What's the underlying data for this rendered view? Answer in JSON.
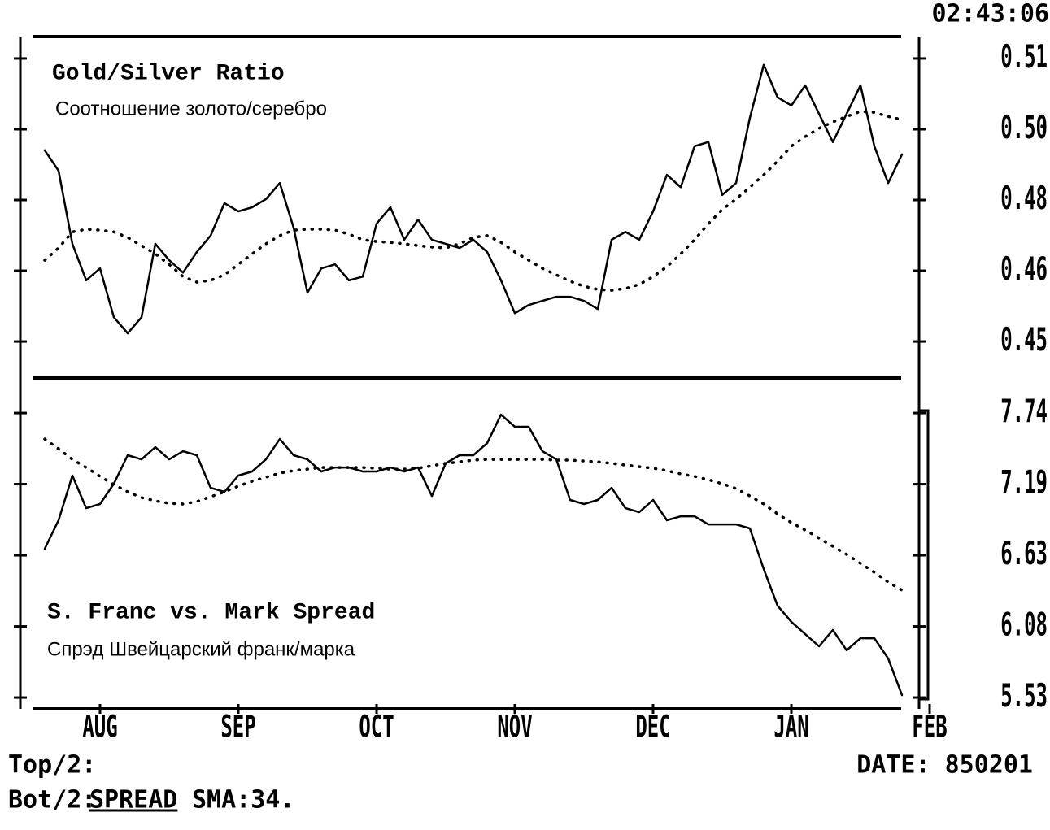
{
  "header": {
    "time": "02:43:06"
  },
  "chart_data": [
    {
      "type": "line",
      "title": "Gold/Silver Ratio",
      "subtitle": "Соотношение золото/серебро",
      "ylim": [
        0.441,
        0.5158
      ],
      "yticks": [
        {
          "value": 0.511,
          "label": "0.51"
        },
        {
          "value": 0.4955,
          "label": "0.50"
        },
        {
          "value": 0.48,
          "label": "0.48"
        },
        {
          "value": 0.4645,
          "label": "0.46"
        },
        {
          "value": 0.449,
          "label": "0.45"
        }
      ],
      "series": [
        {
          "color": "#000000",
          "style": "solid",
          "values": [
            0.4909,
            0.4864,
            0.4704,
            0.4624,
            0.465,
            0.4543,
            0.4508,
            0.4543,
            0.4704,
            0.4668,
            0.4641,
            0.4686,
            0.4722,
            0.4793,
            0.4775,
            0.4784,
            0.4802,
            0.4837,
            0.4739,
            0.4597,
            0.465,
            0.4659,
            0.4624,
            0.4632,
            0.4748,
            0.4784,
            0.4713,
            0.4757,
            0.4713,
            0.4704,
            0.4695,
            0.4713,
            0.4686,
            0.4624,
            0.4552,
            0.457,
            0.4579,
            0.4588,
            0.4588,
            0.4579,
            0.4561,
            0.4713,
            0.473,
            0.4713,
            0.4775,
            0.4855,
            0.4828,
            0.4918,
            0.4927,
            0.4811,
            0.4837,
            0.498,
            0.5096,
            0.5025,
            0.5007,
            0.5051,
            0.4989,
            0.4927,
            0.4989,
            0.5051,
            0.4918,
            0.4837,
            0.49,
            null,
            null
          ]
        },
        {
          "color": "#000000",
          "style": "dotted",
          "values": [
            0.4668,
            0.4695,
            0.473,
            0.4736,
            0.4734,
            0.473,
            0.4718,
            0.47,
            0.4682,
            0.4659,
            0.4632,
            0.462,
            0.4624,
            0.4636,
            0.4659,
            0.4682,
            0.4704,
            0.4722,
            0.4734,
            0.4736,
            0.4736,
            0.4734,
            0.4725,
            0.4713,
            0.4709,
            0.4707,
            0.4704,
            0.47,
            0.4697,
            0.4695,
            0.4704,
            0.4718,
            0.4722,
            0.4707,
            0.4686,
            0.4668,
            0.465,
            0.4636,
            0.4622,
            0.4611,
            0.4604,
            0.4602,
            0.4606,
            0.4615,
            0.4632,
            0.4654,
            0.4682,
            0.4713,
            0.4748,
            0.4779,
            0.4802,
            0.4828,
            0.4855,
            0.4885,
            0.4918,
            0.4939,
            0.4957,
            0.4971,
            0.4983,
            0.4994,
            0.4992,
            0.4983,
            0.4976,
            null,
            null
          ]
        }
      ]
    },
    {
      "type": "line",
      "title": "S. Franc vs. Mark Spread",
      "subtitle": "Спрэд Швейцарский франк/марка",
      "categories": [
        null,
        null,
        null,
        null,
        "AUG",
        null,
        null,
        null,
        null,
        null,
        null,
        null,
        null,
        null,
        "SEP",
        null,
        null,
        null,
        null,
        null,
        null,
        null,
        null,
        null,
        "OCT",
        null,
        null,
        null,
        null,
        null,
        null,
        null,
        null,
        null,
        "NOV",
        null,
        null,
        null,
        null,
        null,
        null,
        null,
        null,
        null,
        "DEC",
        null,
        null,
        null,
        null,
        null,
        null,
        null,
        null,
        null,
        "JAN",
        null,
        null,
        null,
        null,
        null,
        null,
        null,
        null,
        null,
        "FEB"
      ],
      "ylim": [
        5.44,
        8.01
      ],
      "yticks": [
        {
          "value": 7.738,
          "label": "7.74"
        },
        {
          "value": 7.1855,
          "label": "7.19"
        },
        {
          "value": 6.633,
          "label": "6.63"
        },
        {
          "value": 6.0805,
          "label": "6.08"
        },
        {
          "value": 5.528,
          "label": "5.53"
        }
      ],
      "series": [
        {
          "color": "#000000",
          "style": "solid",
          "values": [
            6.684,
            6.905,
            7.252,
            6.999,
            7.031,
            7.189,
            7.41,
            7.378,
            7.473,
            7.378,
            7.441,
            7.41,
            7.157,
            7.126,
            7.252,
            7.284,
            7.378,
            7.536,
            7.41,
            7.378,
            7.284,
            7.315,
            7.315,
            7.284,
            7.284,
            7.315,
            7.284,
            7.315,
            7.094,
            7.347,
            7.41,
            7.41,
            7.504,
            7.725,
            7.631,
            7.631,
            7.441,
            7.378,
            7.063,
            7.031,
            7.063,
            7.157,
            6.999,
            6.968,
            7.063,
            6.905,
            6.936,
            6.936,
            6.873,
            6.873,
            6.873,
            6.842,
            6.526,
            6.242,
            6.116,
            6.021,
            5.926,
            6.052,
            5.895,
            5.989,
            5.989,
            5.832,
            5.547,
            null,
            null
          ]
        },
        {
          "color": "#000000",
          "style": "dotted",
          "values": [
            7.536,
            7.46,
            7.378,
            7.315,
            7.246,
            7.182,
            7.126,
            7.081,
            7.056,
            7.037,
            7.031,
            7.05,
            7.088,
            7.126,
            7.17,
            7.208,
            7.239,
            7.271,
            7.29,
            7.302,
            7.315,
            7.315,
            7.315,
            7.315,
            7.309,
            7.302,
            7.302,
            7.309,
            7.328,
            7.347,
            7.359,
            7.372,
            7.378,
            7.378,
            7.378,
            7.378,
            7.378,
            7.372,
            7.372,
            7.365,
            7.359,
            7.347,
            7.334,
            7.321,
            7.309,
            7.29,
            7.265,
            7.246,
            7.22,
            7.189,
            7.151,
            7.094,
            7.031,
            6.955,
            6.886,
            6.829,
            6.766,
            6.703,
            6.64,
            6.57,
            6.501,
            6.425,
            6.362,
            null,
            null
          ]
        }
      ]
    }
  ],
  "footer": {
    "top": "Top/2:",
    "bottom_label": "Bot/2:",
    "bottom_study": "SPREAD",
    "bottom_sma": "SMA:34.",
    "date": "DATE: 850201"
  }
}
